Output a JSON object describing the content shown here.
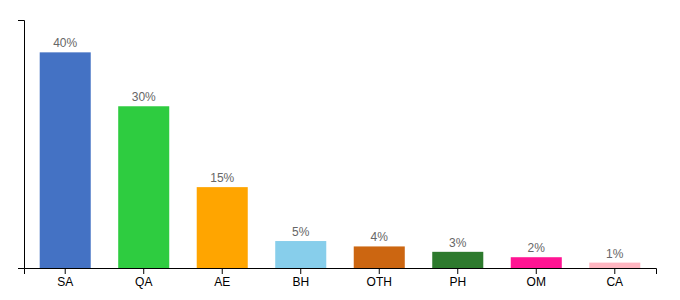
{
  "chart_data": {
    "type": "bar",
    "categories": [
      "SA",
      "QA",
      "AE",
      "BH",
      "OTH",
      "PH",
      "OM",
      "CA"
    ],
    "values": [
      40,
      30,
      15,
      5,
      4,
      3,
      2,
      1
    ],
    "value_labels": [
      "40%",
      "30%",
      "15%",
      "5%",
      "4%",
      "3%",
      "2%",
      "1%"
    ],
    "colors": [
      "#4472C4",
      "#2ECC40",
      "#FFA500",
      "#87CEEB",
      "#CC6611",
      "#2D7A2D",
      "#FF1493",
      "#FFB6C1"
    ],
    "ylim": [
      0,
      46
    ],
    "yticks": [],
    "tick_labels": "x",
    "data_labels": true,
    "grid": false
  }
}
